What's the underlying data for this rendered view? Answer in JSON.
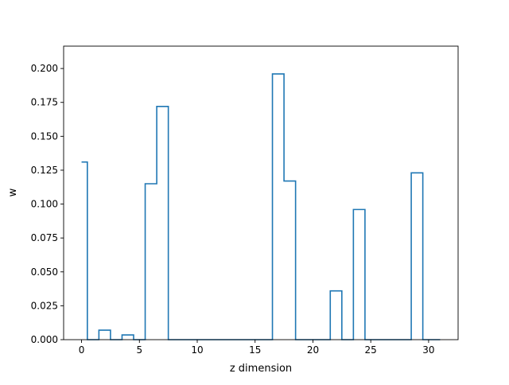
{
  "chart_data": {
    "type": "step",
    "title": "",
    "xlabel": "z dimension",
    "ylabel": "w",
    "xlim": [
      -1.55,
      32.55
    ],
    "ylim": [
      0,
      0.2165
    ],
    "xticks": [
      0,
      5,
      10,
      15,
      20,
      25,
      30
    ],
    "xtick_labels": [
      "0",
      "5",
      "10",
      "15",
      "20",
      "25",
      "30"
    ],
    "yticks": [
      0,
      0.025,
      0.05,
      0.075,
      0.1,
      0.125,
      0.15,
      0.175,
      0.2
    ],
    "ytick_labels": [
      "0.000",
      "0.025",
      "0.050",
      "0.075",
      "0.100",
      "0.125",
      "0.150",
      "0.175",
      "0.200"
    ],
    "grid": false,
    "legend": "none",
    "line_color": "#1f77b4",
    "series": [
      {
        "x": [
          0,
          1,
          2,
          3,
          4,
          5,
          6,
          7,
          8,
          9,
          10,
          11,
          12,
          13,
          14,
          15,
          16,
          17,
          18,
          19,
          20,
          21,
          22,
          23,
          24,
          25,
          26,
          27,
          28,
          29,
          30,
          31
        ],
        "values": [
          0.131,
          0,
          0.007,
          0,
          0.0035,
          0,
          0.115,
          0.172,
          0,
          0,
          0,
          0,
          0,
          0,
          0,
          0,
          0,
          0.196,
          0.117,
          0,
          0,
          0,
          0.036,
          0,
          0.096,
          0,
          0,
          0,
          0,
          0.123,
          0,
          0
        ]
      }
    ]
  }
}
